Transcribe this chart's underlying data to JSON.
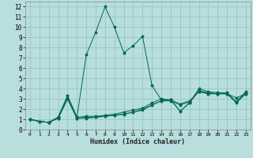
{
  "xlabel": "Humidex (Indice chaleur)",
  "bg_color": "#b8dede",
  "grid_color": "#90c0c0",
  "line_color": "#006858",
  "xlim": [
    -0.5,
    23.5
  ],
  "ylim": [
    0,
    12.5
  ],
  "xticks": [
    0,
    1,
    2,
    3,
    4,
    5,
    6,
    7,
    8,
    9,
    10,
    11,
    12,
    13,
    14,
    15,
    16,
    17,
    18,
    19,
    20,
    21,
    22,
    23
  ],
  "yticks": [
    0,
    1,
    2,
    3,
    4,
    5,
    6,
    7,
    8,
    9,
    10,
    11,
    12
  ],
  "series": [
    [
      1.0,
      0.8,
      0.7,
      1.2,
      3.3,
      1.2,
      7.3,
      9.5,
      12.0,
      10.0,
      7.5,
      8.2,
      9.1,
      4.3,
      2.9,
      2.9,
      1.8,
      2.6,
      4.0,
      3.7,
      3.6,
      3.6,
      2.7,
      3.7
    ],
    [
      1.0,
      0.8,
      0.7,
      1.2,
      3.3,
      1.2,
      1.3,
      1.3,
      1.4,
      1.5,
      1.7,
      1.9,
      2.1,
      2.6,
      3.0,
      2.9,
      1.8,
      2.6,
      3.8,
      3.6,
      3.5,
      3.5,
      2.7,
      3.6
    ],
    [
      1.0,
      0.8,
      0.7,
      1.1,
      3.0,
      1.1,
      1.2,
      1.2,
      1.3,
      1.4,
      1.5,
      1.7,
      2.0,
      2.4,
      2.8,
      2.9,
      2.5,
      2.8,
      3.7,
      3.5,
      3.5,
      3.5,
      3.1,
      3.5
    ],
    [
      1.0,
      0.8,
      0.7,
      1.1,
      3.0,
      1.1,
      1.1,
      1.2,
      1.3,
      1.4,
      1.5,
      1.7,
      1.9,
      2.4,
      2.8,
      2.8,
      2.4,
      2.7,
      3.7,
      3.5,
      3.5,
      3.5,
      2.6,
      3.5
    ]
  ]
}
